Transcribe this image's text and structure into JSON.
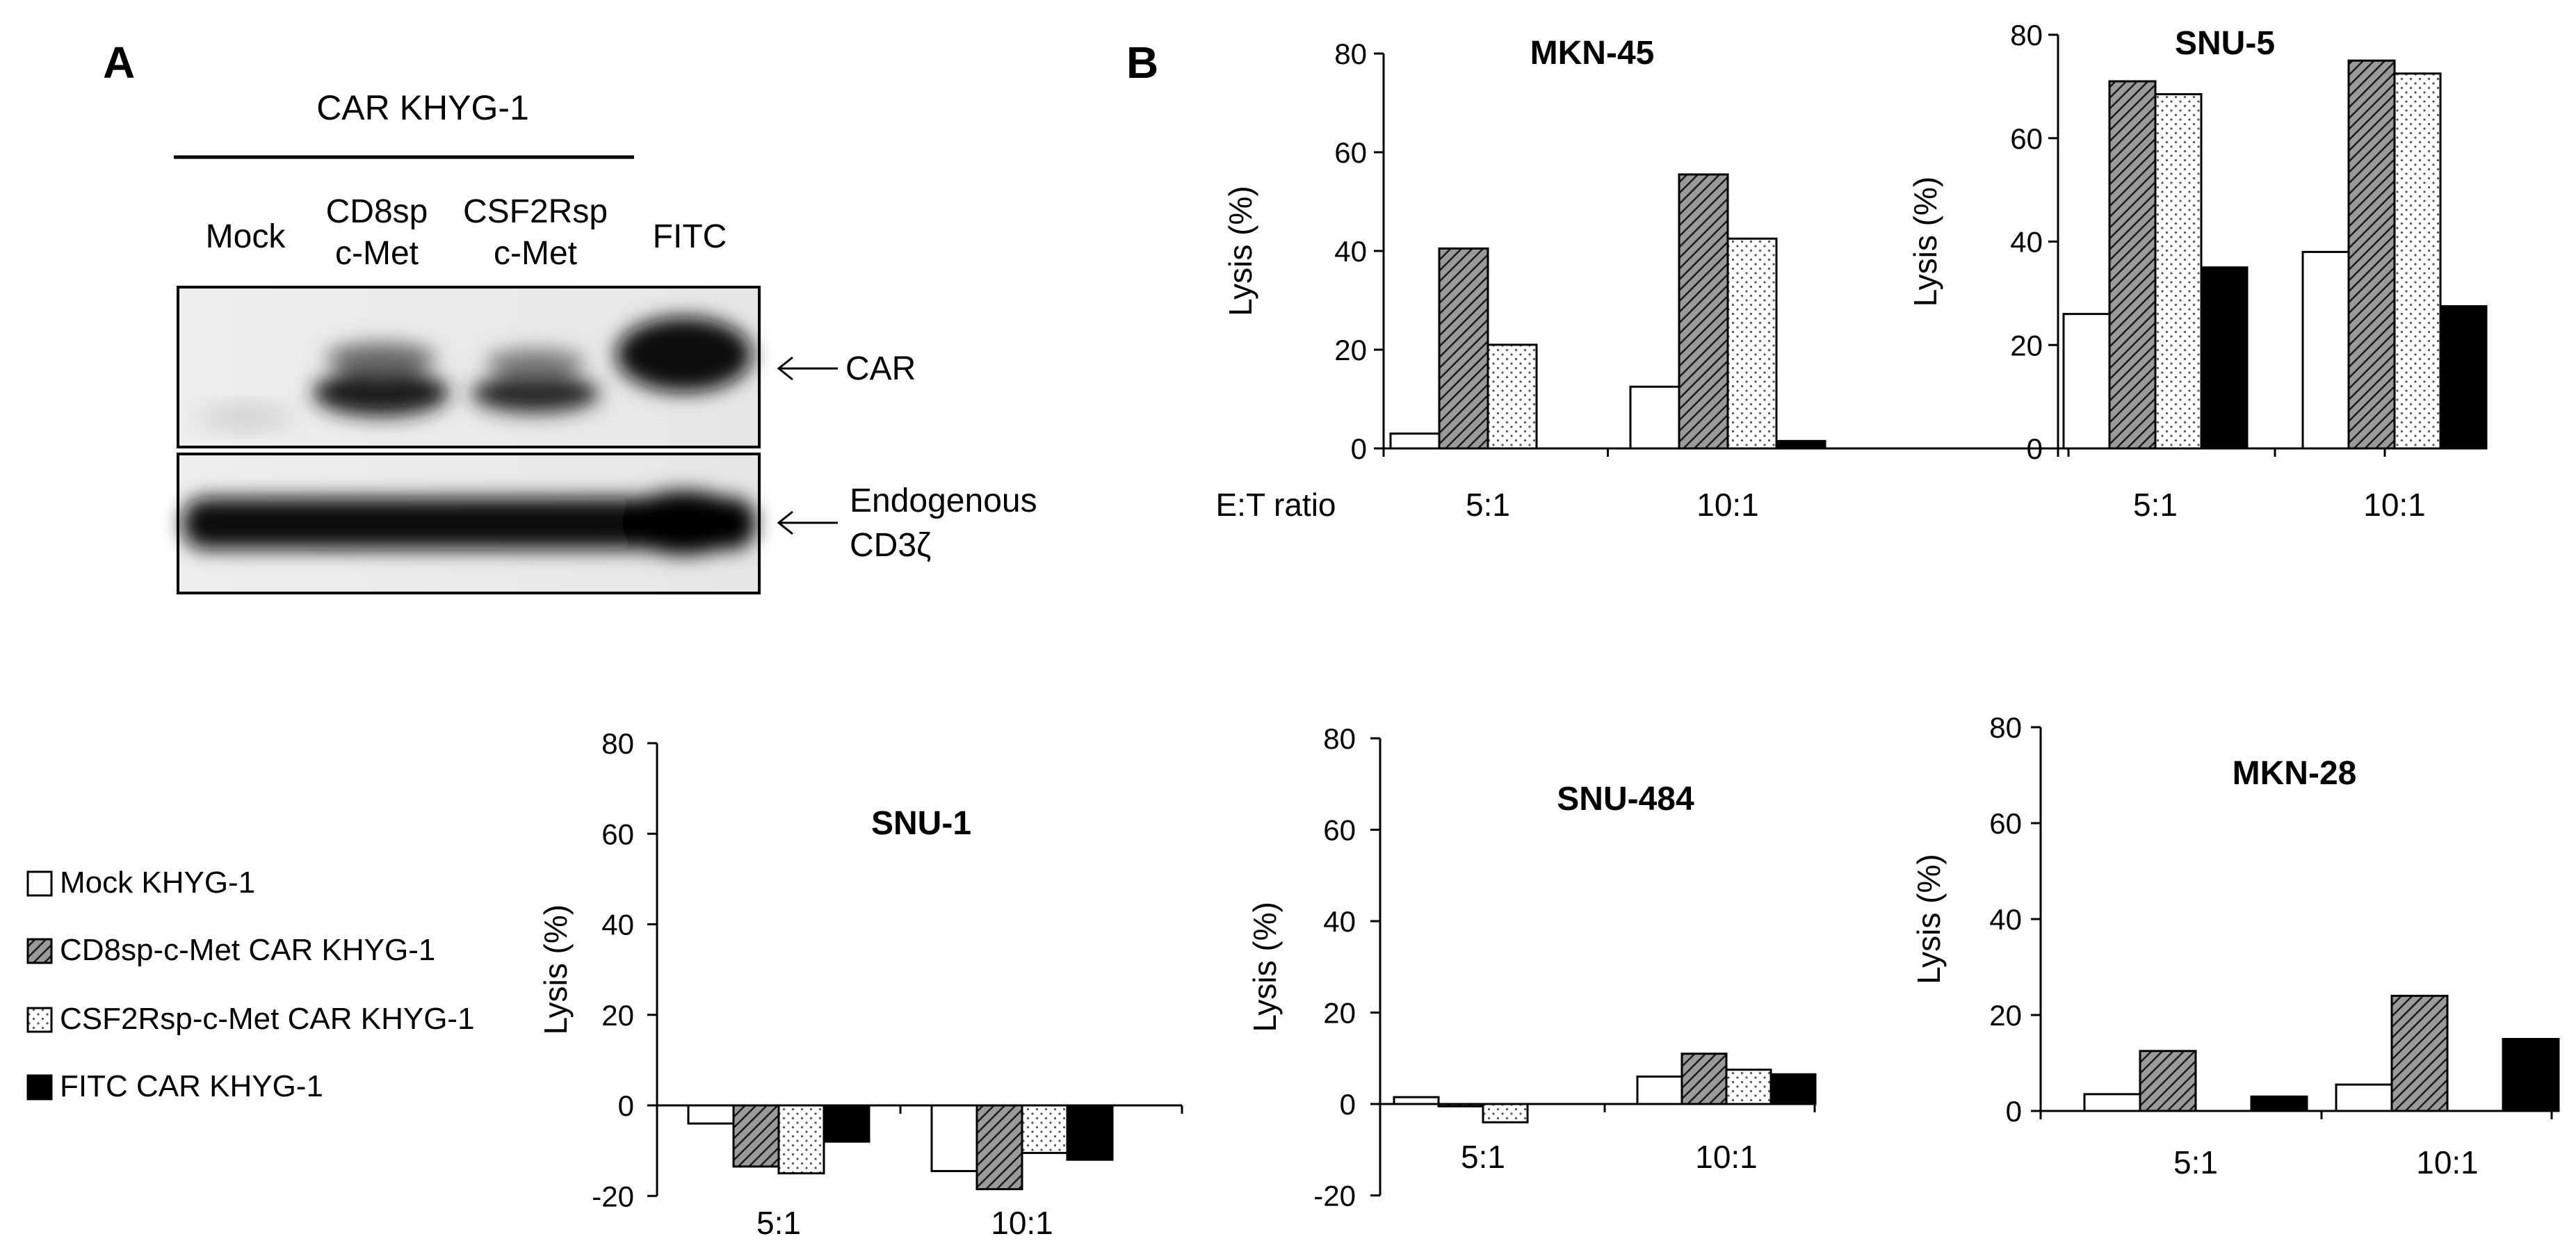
{
  "panel_a": {
    "letter": "A",
    "group_label": "CAR KHYG-1",
    "lanes": [
      "Mock",
      "CD8sp",
      "c-Met",
      "CSF2Rsp",
      "c-Met",
      "FITC"
    ],
    "band_labels": {
      "car": "CAR",
      "cd3_line1": "Endogenous",
      "cd3_line2": "CD3ζ"
    }
  },
  "panel_b": {
    "letter": "B"
  },
  "legend": {
    "items": [
      {
        "label": "Mock KHYG-1",
        "pattern": "white"
      },
      {
        "label": "CD8sp-c-Met CAR KHYG-1",
        "pattern": "hatch"
      },
      {
        "label": "CSF2Rsp-c-Met CAR KHYG-1",
        "pattern": "dots"
      },
      {
        "label": "FITC CAR KHYG-1",
        "pattern": "black"
      }
    ]
  },
  "chart_data": [
    {
      "type": "bar",
      "title": "MKN-45",
      "ylabel": "Lysis (%)",
      "xlabel": "E:T ratio",
      "categories": [
        "5:1",
        "10:1"
      ],
      "ylim": [
        0,
        80
      ],
      "yticks": [
        0,
        20,
        40,
        60,
        80
      ],
      "series": [
        {
          "name": "Mock KHYG-1",
          "values": [
            3,
            12.5
          ]
        },
        {
          "name": "CD8sp-c-Met CAR KHYG-1",
          "values": [
            40.5,
            55.5
          ]
        },
        {
          "name": "CSF2Rsp-c-Met CAR KHYG-1",
          "values": [
            21,
            42.5
          ]
        },
        {
          "name": "FITC CAR KHYG-1",
          "values": [
            0,
            1.5
          ]
        }
      ]
    },
    {
      "type": "bar",
      "title": "SNU-5",
      "ylabel": "Lysis (%)",
      "xlabel": "",
      "categories": [
        "5:1",
        "10:1"
      ],
      "ylim": [
        0,
        80
      ],
      "yticks": [
        0,
        20,
        40,
        60,
        80
      ],
      "series": [
        {
          "name": "Mock KHYG-1",
          "values": [
            26,
            38
          ]
        },
        {
          "name": "CD8sp-c-Met CAR KHYG-1",
          "values": [
            71,
            75
          ]
        },
        {
          "name": "CSF2Rsp-c-Met CAR KHYG-1",
          "values": [
            68.5,
            72.5
          ]
        },
        {
          "name": "FITC CAR KHYG-1",
          "values": [
            35,
            27.5
          ]
        }
      ]
    },
    {
      "type": "bar",
      "title": "SNU-1",
      "ylabel": "Lysis (%)",
      "xlabel": "",
      "categories": [
        "5:1",
        "10:1"
      ],
      "ylim": [
        -20,
        80
      ],
      "yticks": [
        -20,
        0,
        20,
        40,
        60,
        80
      ],
      "series": [
        {
          "name": "Mock KHYG-1",
          "values": [
            -4,
            -14.5
          ]
        },
        {
          "name": "CD8sp-c-Met CAR KHYG-1",
          "values": [
            -13.5,
            -18.5
          ]
        },
        {
          "name": "CSF2Rsp-c-Met CAR KHYG-1",
          "values": [
            -15,
            -10.5
          ]
        },
        {
          "name": "FITC CAR KHYG-1",
          "values": [
            -8,
            -12
          ]
        }
      ]
    },
    {
      "type": "bar",
      "title": "SNU-484",
      "ylabel": "Lysis (%)",
      "xlabel": "",
      "categories": [
        "5:1",
        "10:1"
      ],
      "ylim": [
        -20,
        80
      ],
      "yticks": [
        -20,
        0,
        20,
        40,
        60,
        80
      ],
      "series": [
        {
          "name": "Mock KHYG-1",
          "values": [
            1.5,
            6
          ]
        },
        {
          "name": "CD8sp-c-Met CAR KHYG-1",
          "values": [
            -0.5,
            11
          ]
        },
        {
          "name": "CSF2Rsp-c-Met CAR KHYG-1",
          "values": [
            -4,
            7.5
          ]
        },
        {
          "name": "FITC CAR KHYG-1",
          "values": [
            0,
            6.5
          ]
        }
      ]
    },
    {
      "type": "bar",
      "title": "MKN-28",
      "ylabel": "Lysis (%)",
      "xlabel": "",
      "categories": [
        "5:1",
        "10:1"
      ],
      "ylim": [
        0,
        80
      ],
      "yticks": [
        0,
        20,
        40,
        60,
        80
      ],
      "series": [
        {
          "name": "Mock KHYG-1",
          "values": [
            3.5,
            5.5
          ]
        },
        {
          "name": "CD8sp-c-Met CAR KHYG-1",
          "values": [
            12.5,
            24
          ]
        },
        {
          "name": "CSF2Rsp-c-Met CAR KHYG-1",
          "values": [
            0,
            0
          ]
        },
        {
          "name": "FITC CAR KHYG-1",
          "values": [
            3,
            15
          ]
        }
      ]
    }
  ]
}
